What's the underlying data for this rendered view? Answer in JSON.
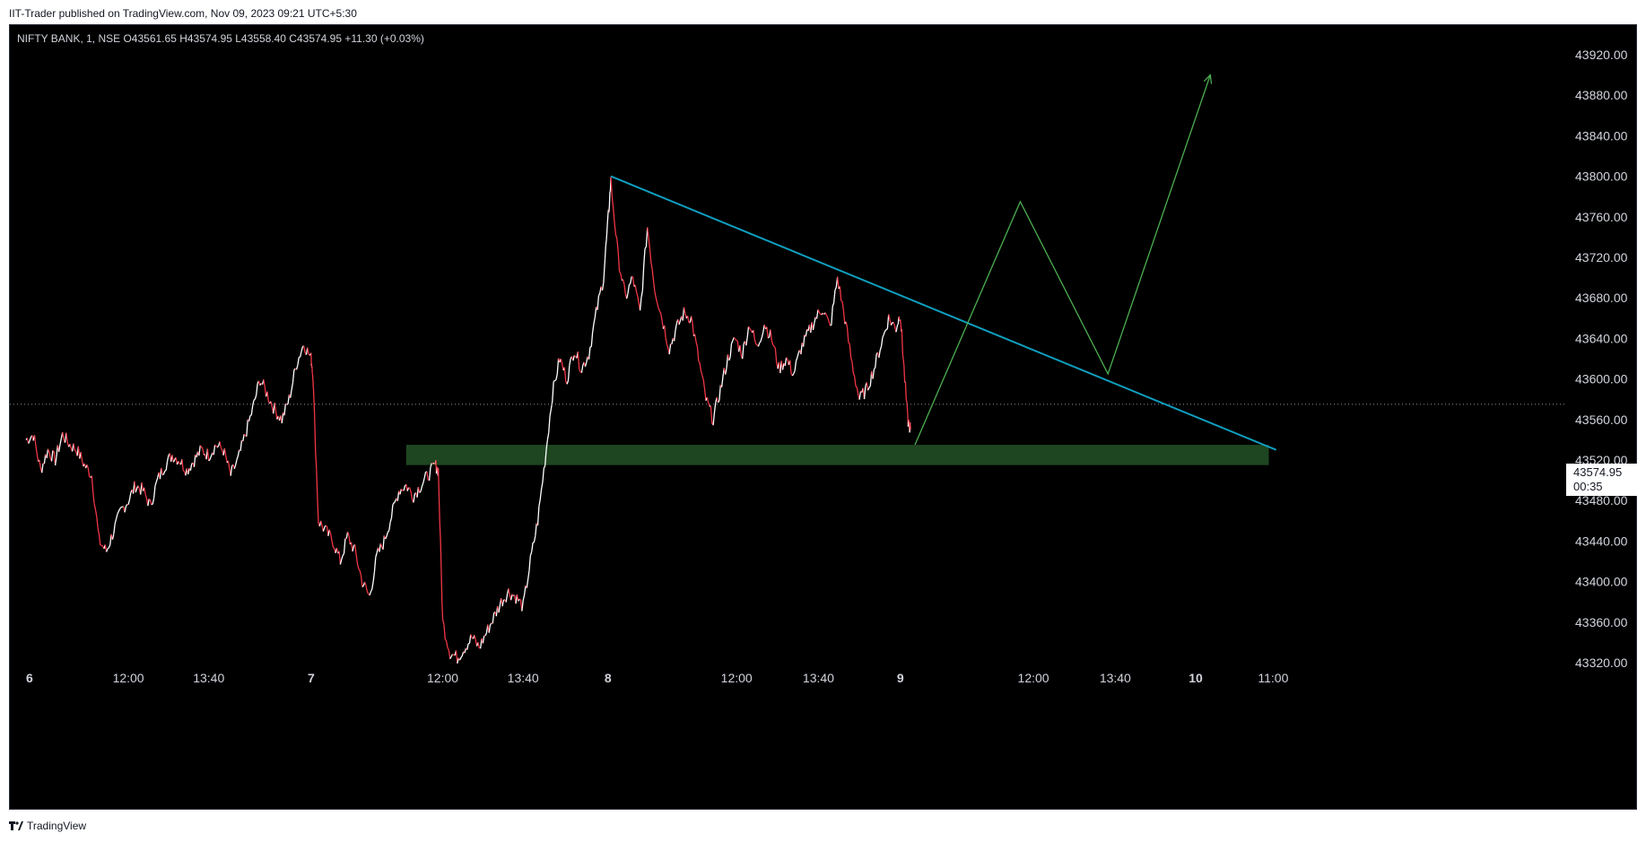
{
  "header": {
    "published_line": "IIT-Trader published on TradingView.com, Nov 09, 2023 09:21 UTC+5:30"
  },
  "legend": {
    "symbol_line": "NIFTY BANK, 1, NSE  O43561.65  H43574.95  L43558.40  C43574.95  +11.30 (+0.03%)"
  },
  "last_price": {
    "price": "43574.95",
    "countdown": "00:35"
  },
  "footer": {
    "brand": "TradingView"
  },
  "colors": {
    "background": "#000000",
    "candle_up": "#ffffff",
    "candle_down": "#f23645",
    "trendline": "#0fa0c0",
    "projection": "#4caf50",
    "support_zone": "#1e4620",
    "axis_text": "#d1d4dc"
  },
  "chart_data": {
    "type": "line",
    "symbol": "NIFTY BANK",
    "interval": "1",
    "exchange": "NSE",
    "ohlc": {
      "open": 43561.65,
      "high": 43574.95,
      "low": 43558.4,
      "close": 43574.95,
      "change": 11.3,
      "change_pct": 0.03
    },
    "y_axis": {
      "ticks": [
        "43920.00",
        "43880.00",
        "43840.00",
        "43800.00",
        "43760.00",
        "43720.00",
        "43680.00",
        "43640.00",
        "43600.00",
        "43560.00",
        "43520.00",
        "43480.00",
        "43440.00",
        "43400.00",
        "43360.00",
        "43320.00"
      ],
      "ylim": [
        43320,
        43920
      ],
      "position": "right"
    },
    "x_axis": {
      "ticks": [
        {
          "label": "6",
          "t": 0,
          "bold": true
        },
        {
          "label": "12:00",
          "t": 0.7
        },
        {
          "label": "13:40",
          "t": 1.25
        },
        {
          "label": "7",
          "t": 1.95,
          "bold": true
        },
        {
          "label": "12:00",
          "t": 2.85
        },
        {
          "label": "13:40",
          "t": 3.4
        },
        {
          "label": "8",
          "t": 3.98,
          "bold": true
        },
        {
          "label": "12:00",
          "t": 4.86
        },
        {
          "label": "13:40",
          "t": 5.42
        },
        {
          "label": "9",
          "t": 5.98,
          "bold": true
        },
        {
          "label": "12:00",
          "t": 6.89
        },
        {
          "label": "13:40",
          "t": 7.45
        },
        {
          "label": "10",
          "t": 8.0,
          "bold": true
        },
        {
          "label": "11:00",
          "t": 8.53
        }
      ]
    },
    "price_path": [
      [
        0.0,
        43540
      ],
      [
        0.05,
        43545
      ],
      [
        0.1,
        43510
      ],
      [
        0.15,
        43530
      ],
      [
        0.2,
        43520
      ],
      [
        0.25,
        43545
      ],
      [
        0.3,
        43535
      ],
      [
        0.35,
        43530
      ],
      [
        0.4,
        43515
      ],
      [
        0.45,
        43505
      ],
      [
        0.5,
        43440
      ],
      [
        0.55,
        43430
      ],
      [
        0.6,
        43450
      ],
      [
        0.65,
        43470
      ],
      [
        0.7,
        43480
      ],
      [
        0.75,
        43495
      ],
      [
        0.8,
        43490
      ],
      [
        0.85,
        43475
      ],
      [
        0.9,
        43500
      ],
      [
        0.95,
        43515
      ],
      [
        1.0,
        43525
      ],
      [
        1.05,
        43520
      ],
      [
        1.1,
        43510
      ],
      [
        1.15,
        43520
      ],
      [
        1.2,
        43530
      ],
      [
        1.25,
        43525
      ],
      [
        1.3,
        43535
      ],
      [
        1.35,
        43530
      ],
      [
        1.4,
        43505
      ],
      [
        1.45,
        43520
      ],
      [
        1.5,
        43545
      ],
      [
        1.55,
        43570
      ],
      [
        1.6,
        43600
      ],
      [
        1.65,
        43585
      ],
      [
        1.7,
        43570
      ],
      [
        1.75,
        43560
      ],
      [
        1.8,
        43580
      ],
      [
        1.85,
        43615
      ],
      [
        1.9,
        43635
      ],
      [
        1.95,
        43620
      ],
      [
        1.96,
        43610
      ],
      [
        2.0,
        43460
      ],
      [
        2.05,
        43450
      ],
      [
        2.1,
        43440
      ],
      [
        2.15,
        43420
      ],
      [
        2.2,
        43445
      ],
      [
        2.25,
        43430
      ],
      [
        2.3,
        43400
      ],
      [
        2.35,
        43385
      ],
      [
        2.4,
        43425
      ],
      [
        2.45,
        43440
      ],
      [
        2.5,
        43465
      ],
      [
        2.55,
        43490
      ],
      [
        2.6,
        43495
      ],
      [
        2.65,
        43485
      ],
      [
        2.7,
        43495
      ],
      [
        2.75,
        43505
      ],
      [
        2.8,
        43515
      ],
      [
        2.82,
        43510
      ],
      [
        2.85,
        43360
      ],
      [
        2.9,
        43330
      ],
      [
        2.95,
        43325
      ],
      [
        3.0,
        43335
      ],
      [
        3.05,
        43345
      ],
      [
        3.1,
        43335
      ],
      [
        3.15,
        43350
      ],
      [
        3.2,
        43365
      ],
      [
        3.25,
        43380
      ],
      [
        3.3,
        43390
      ],
      [
        3.35,
        43385
      ],
      [
        3.4,
        43375
      ],
      [
        3.45,
        43420
      ],
      [
        3.5,
        43460
      ],
      [
        3.55,
        43520
      ],
      [
        3.6,
        43585
      ],
      [
        3.65,
        43620
      ],
      [
        3.7,
        43600
      ],
      [
        3.75,
        43630
      ],
      [
        3.8,
        43610
      ],
      [
        3.85,
        43625
      ],
      [
        3.9,
        43665
      ],
      [
        3.95,
        43700
      ],
      [
        3.98,
        43755
      ],
      [
        4.0,
        43795
      ],
      [
        4.05,
        43720
      ],
      [
        4.1,
        43680
      ],
      [
        4.15,
        43700
      ],
      [
        4.2,
        43665
      ],
      [
        4.25,
        43750
      ],
      [
        4.3,
        43690
      ],
      [
        4.35,
        43660
      ],
      [
        4.4,
        43630
      ],
      [
        4.45,
        43650
      ],
      [
        4.5,
        43665
      ],
      [
        4.55,
        43660
      ],
      [
        4.6,
        43620
      ],
      [
        4.65,
        43580
      ],
      [
        4.7,
        43560
      ],
      [
        4.75,
        43590
      ],
      [
        4.8,
        43620
      ],
      [
        4.85,
        43640
      ],
      [
        4.9,
        43625
      ],
      [
        4.95,
        43655
      ],
      [
        5.0,
        43630
      ],
      [
        5.05,
        43655
      ],
      [
        5.1,
        43640
      ],
      [
        5.15,
        43610
      ],
      [
        5.2,
        43620
      ],
      [
        5.25,
        43605
      ],
      [
        5.3,
        43630
      ],
      [
        5.35,
        43645
      ],
      [
        5.4,
        43660
      ],
      [
        5.45,
        43670
      ],
      [
        5.5,
        43650
      ],
      [
        5.55,
        43700
      ],
      [
        5.6,
        43660
      ],
      [
        5.65,
        43615
      ],
      [
        5.7,
        43580
      ],
      [
        5.75,
        43590
      ],
      [
        5.8,
        43610
      ],
      [
        5.85,
        43635
      ],
      [
        5.9,
        43660
      ],
      [
        5.95,
        43650
      ],
      [
        5.98,
        43665
      ],
      [
        6.0,
        43620
      ],
      [
        6.03,
        43560
      ],
      [
        6.05,
        43550
      ]
    ],
    "annotations": {
      "trendline": {
        "from": [
          4.0,
          43800
        ],
        "to": [
          8.55,
          43530
        ]
      },
      "support_zone": {
        "x_from": 2.6,
        "x_to": 8.5,
        "y_low": 43515,
        "y_high": 43535
      },
      "projection": [
        [
          6.08,
          43535
        ],
        [
          6.8,
          43775
        ],
        [
          7.4,
          43605
        ],
        [
          8.1,
          43900
        ]
      ]
    }
  }
}
